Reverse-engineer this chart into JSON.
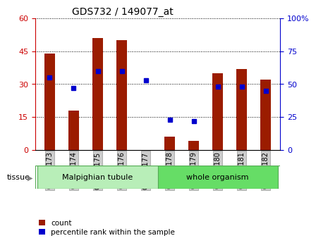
{
  "title": "GDS732 / 149077_at",
  "samples": [
    "GSM29173",
    "GSM29174",
    "GSM29175",
    "GSM29176",
    "GSM29177",
    "GSM29178",
    "GSM29179",
    "GSM29180",
    "GSM29181",
    "GSM29182"
  ],
  "counts": [
    44,
    18,
    51,
    50,
    0,
    6,
    4,
    35,
    37,
    32
  ],
  "percentiles": [
    55,
    47,
    60,
    60,
    53,
    23,
    22,
    48,
    48,
    45
  ],
  "tissue_groups": [
    {
      "label": "Malpighian tubule",
      "start": 0,
      "end": 5,
      "color": "#B8EEB8"
    },
    {
      "label": "whole organism",
      "start": 5,
      "end": 10,
      "color": "#66DD66"
    }
  ],
  "bar_color": "#9B1C00",
  "dot_color": "#0000CD",
  "ylim_left": [
    0,
    60
  ],
  "ylim_right": [
    0,
    100
  ],
  "yticks_left": [
    0,
    15,
    30,
    45,
    60
  ],
  "yticks_right": [
    0,
    25,
    50,
    75,
    100
  ],
  "tick_color_left": "#CC0000",
  "tick_color_right": "#0000CD",
  "grid_color": "#000000",
  "legend_count_label": "count",
  "legend_pct_label": "percentile rank within the sample",
  "tissue_label": "tissue",
  "bar_width": 0.45
}
